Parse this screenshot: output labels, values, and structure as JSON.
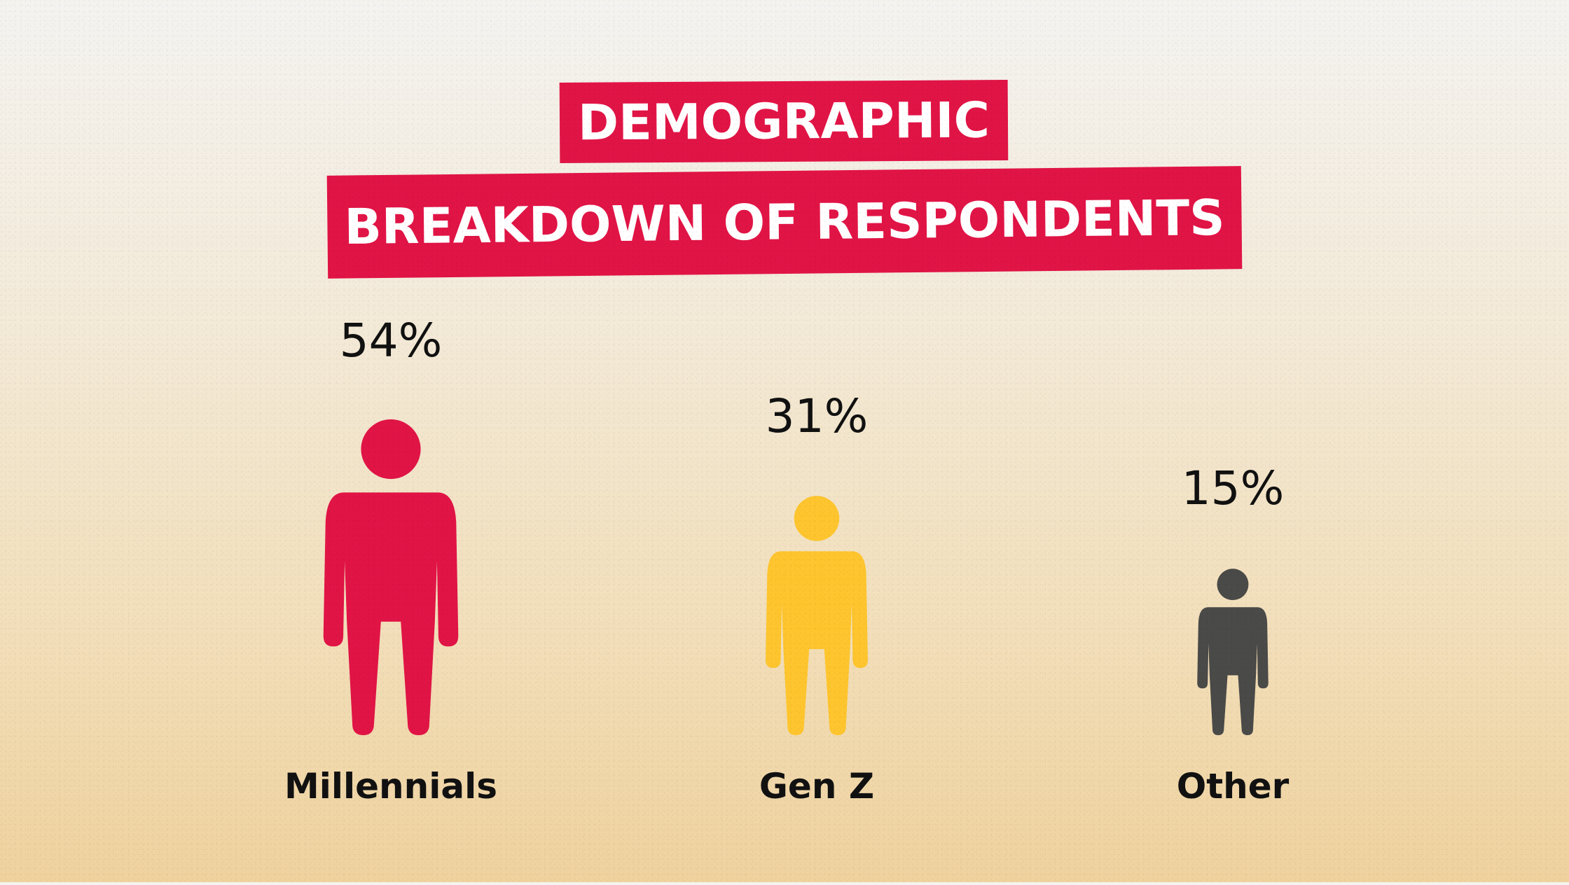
{
  "chart_data": {
    "type": "pictograph",
    "title": [
      "DEMOGRAPHIC",
      "BREAKDOWN OF RESPONDENTS"
    ],
    "categories": [
      "Millennials",
      "Gen Z",
      "Other"
    ],
    "values": [
      54,
      31,
      15
    ],
    "value_labels": [
      "54%",
      "31%",
      "15%"
    ],
    "colors": [
      "#e11446",
      "#fec52e",
      "#4a4a48"
    ],
    "title_banner_color": "#e11446",
    "title_text_color": "#ffffff"
  }
}
